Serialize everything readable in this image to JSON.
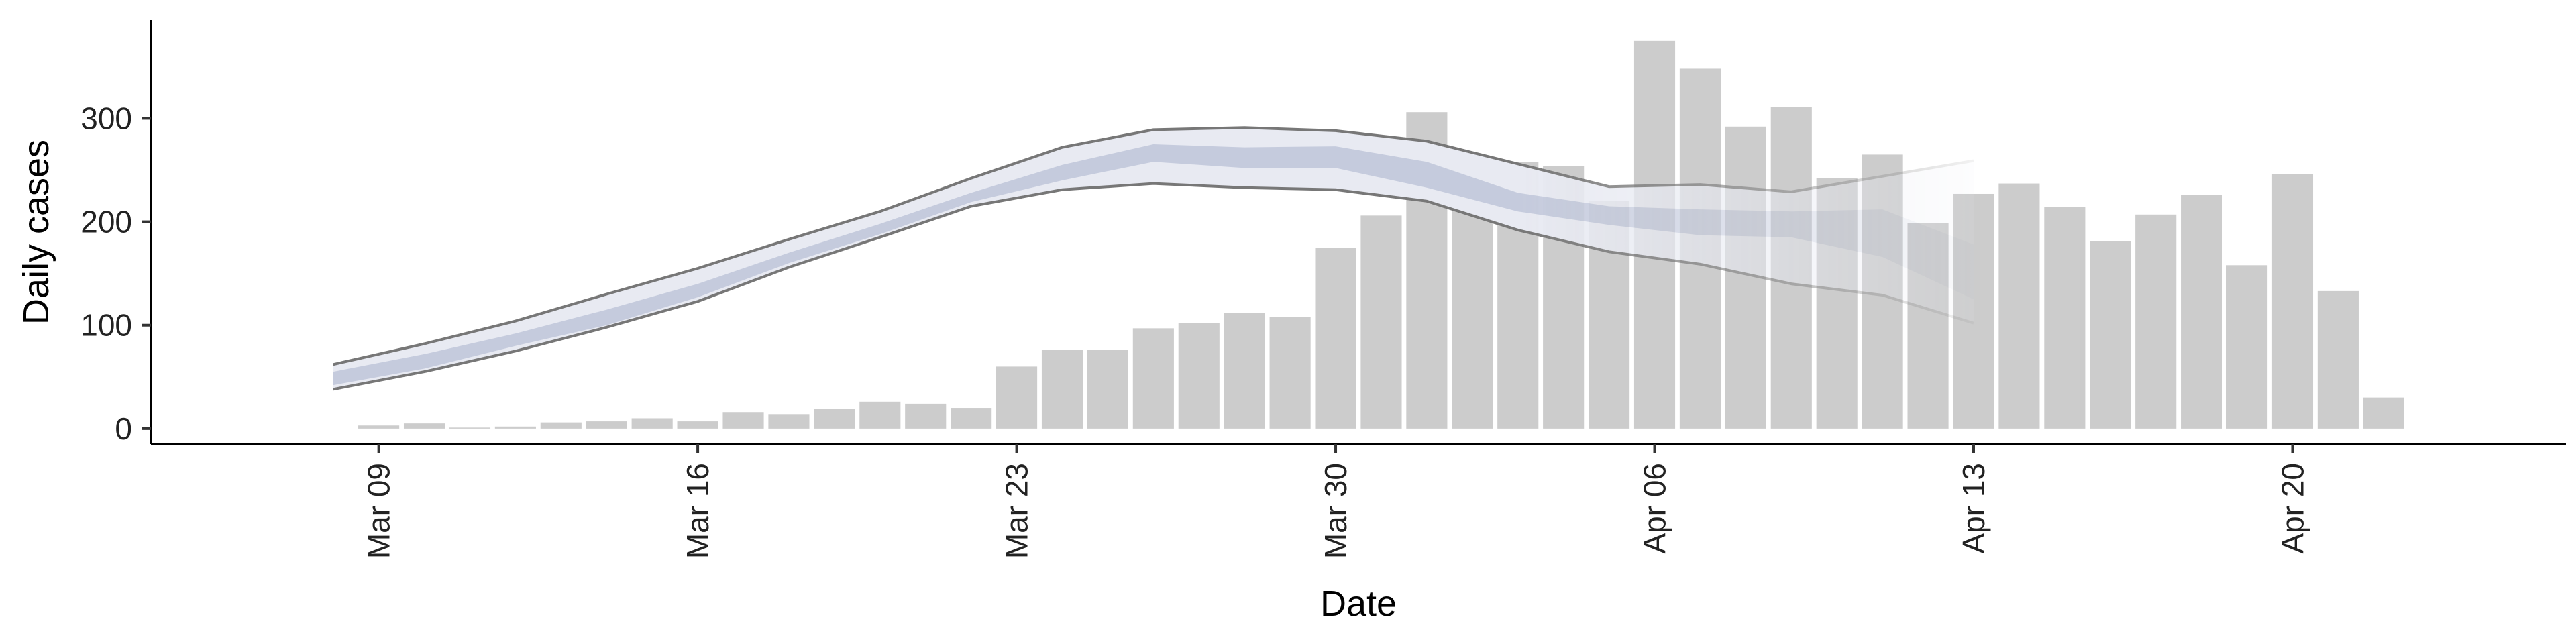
{
  "chart_data": {
    "type": "bar",
    "title": "",
    "xlabel": "Date",
    "ylabel": "Daily cases",
    "ylim": [
      -15,
      395
    ],
    "y_ticks": [
      0,
      100,
      200,
      300
    ],
    "x_range": [
      "2020-03-04",
      "2020-04-26"
    ],
    "x_ticks": [
      {
        "date": "2020-03-09",
        "label": "Mar 09"
      },
      {
        "date": "2020-03-16",
        "label": "Mar 16"
      },
      {
        "date": "2020-03-23",
        "label": "Mar 23"
      },
      {
        "date": "2020-03-30",
        "label": "Mar 30"
      },
      {
        "date": "2020-04-06",
        "label": "Apr 06"
      },
      {
        "date": "2020-04-13",
        "label": "Apr 13"
      },
      {
        "date": "2020-04-20",
        "label": "Apr 20"
      }
    ],
    "grid": false,
    "legend": "none",
    "bars": {
      "start_date": "2020-03-09",
      "values": [
        3,
        5,
        1,
        2,
        6,
        7,
        10,
        7,
        16,
        14,
        19,
        26,
        24,
        20,
        60,
        76,
        76,
        97,
        102,
        112,
        108,
        175,
        206,
        306,
        218,
        258,
        254,
        220,
        375,
        348,
        292,
        311,
        242,
        265,
        199,
        227,
        237,
        214,
        181,
        207,
        226,
        158,
        246,
        133,
        30
      ],
      "color": "#cccccc"
    },
    "estimate_bands": {
      "start_date": "2020-03-08",
      "end_date": "2020-04-13",
      "step_days": 2,
      "outer_upper": [
        62,
        82,
        104,
        130,
        155,
        183,
        210,
        242,
        272,
        289,
        291,
        288,
        278,
        256,
        234,
        236,
        229,
        244,
        259
      ],
      "outer_lower": [
        38,
        55,
        75,
        98,
        123,
        156,
        185,
        215,
        231,
        237,
        233,
        231,
        220,
        192,
        171,
        159,
        140,
        129,
        102
      ],
      "inner_upper": [
        55,
        72,
        92,
        115,
        140,
        170,
        198,
        228,
        255,
        275,
        272,
        273,
        258,
        228,
        215,
        212,
        210,
        212,
        178
      ],
      "inner_lower": [
        42,
        58,
        80,
        100,
        127,
        160,
        188,
        219,
        240,
        258,
        252,
        252,
        233,
        210,
        197,
        187,
        185,
        166,
        125
      ],
      "outer_color": "#e8eaf2",
      "inner_color": "#c5cbdd",
      "line_color": "#777777"
    }
  }
}
